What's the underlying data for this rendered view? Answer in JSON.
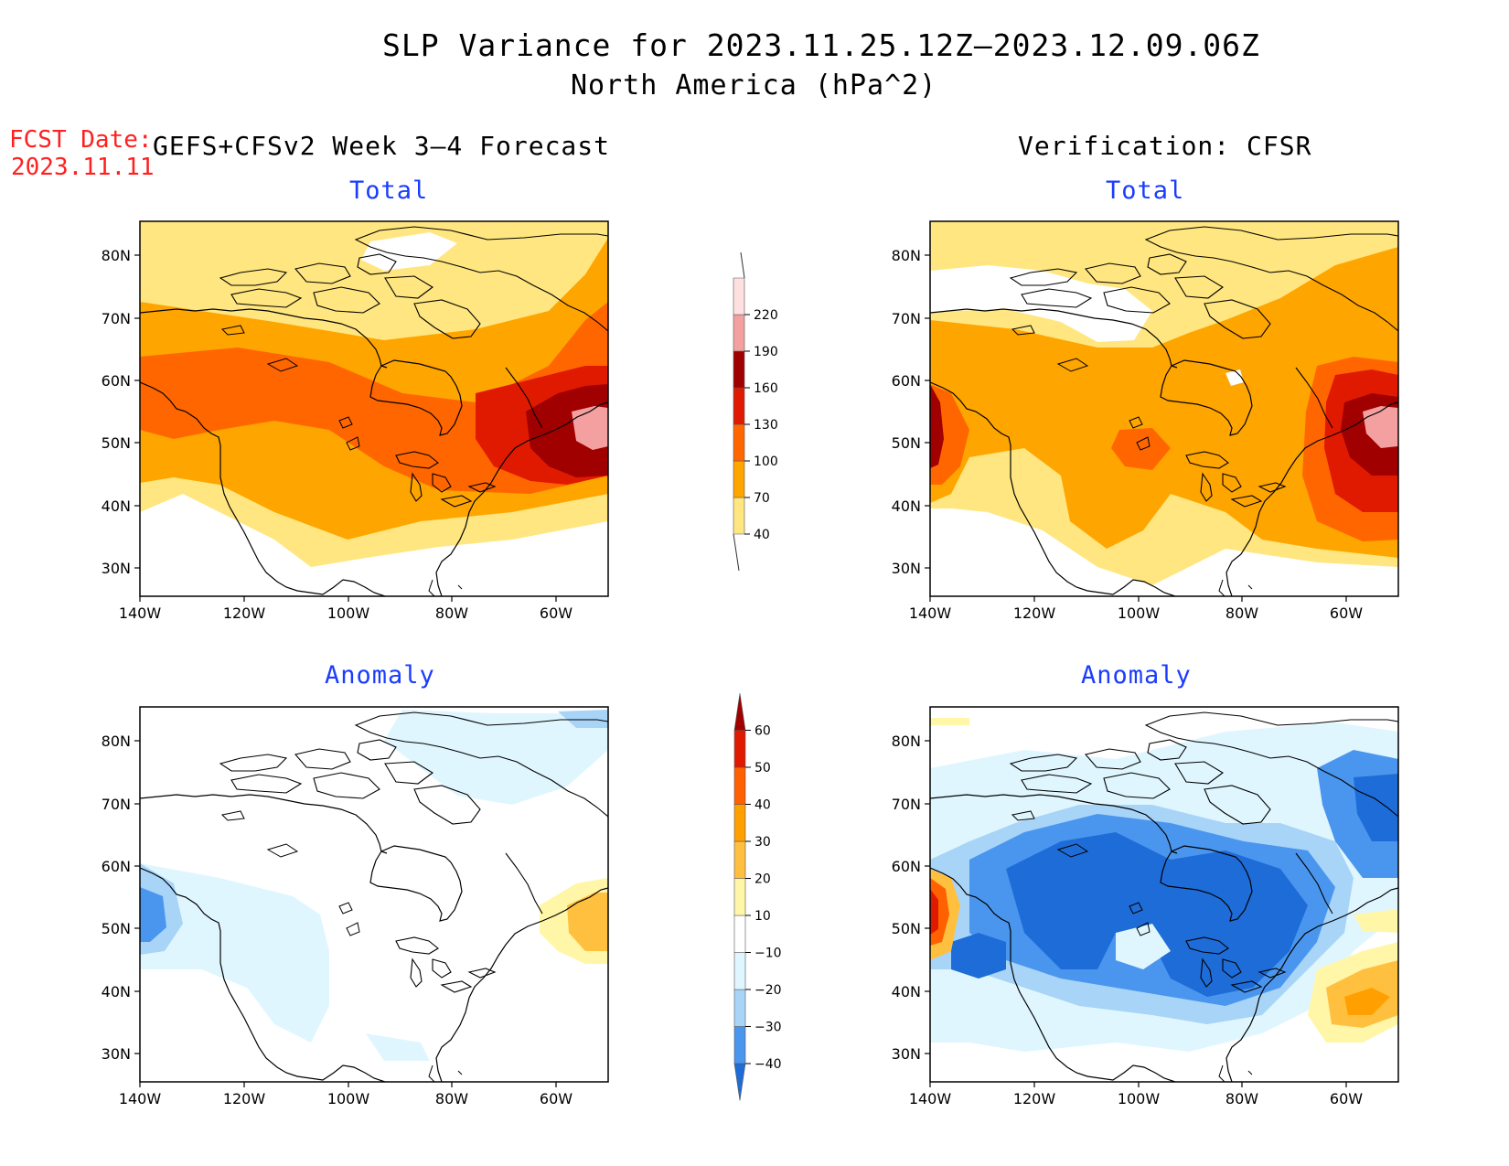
{
  "header": {
    "title": "SLP Variance for 2023.11.25.12Z–2023.12.09.06Z",
    "subtitle": "North America (hPa^2)",
    "fcst_date_label": "FCST Date:",
    "fcst_date_value": "2023.11.11",
    "left_column": "GEFS+CFSv2 Week 3–4 Forecast",
    "right_column": "Verification: CFSR"
  },
  "panels": {
    "fcst_total": {
      "title": "Total"
    },
    "fcst_anom": {
      "title": "Anomaly"
    },
    "verif_total": {
      "title": "Total"
    },
    "verif_anom": {
      "title": "Anomaly"
    }
  },
  "axes": {
    "lat_labels": [
      "80N",
      "70N",
      "60N",
      "50N",
      "40N",
      "30N"
    ],
    "lon_labels": [
      "140W",
      "120W",
      "100W",
      "80W",
      "60W"
    ]
  },
  "legends": {
    "total": {
      "levels": [
        "40",
        "70",
        "100",
        "130",
        "160",
        "190",
        "220"
      ],
      "colors": [
        "#ffe680",
        "#ffa500",
        "#ff6600",
        "#e01a00",
        "#a00000",
        "#f4a0a0",
        "#ffe0e0"
      ]
    },
    "anomaly": {
      "levels": [
        "−40",
        "−30",
        "−20",
        "−10",
        "10",
        "20",
        "30",
        "40",
        "50",
        "60"
      ],
      "colors": [
        "#1e6cd8",
        "#4a96ee",
        "#a8d4f8",
        "#e0f6ff",
        "#ffffff",
        "#fff6a8",
        "#ffc040",
        "#ffa000",
        "#ff6000",
        "#e01a00",
        "#a00000"
      ]
    }
  },
  "colors": {
    "title_blue": "#1a3cff",
    "fcst_red": "#ff2020"
  }
}
